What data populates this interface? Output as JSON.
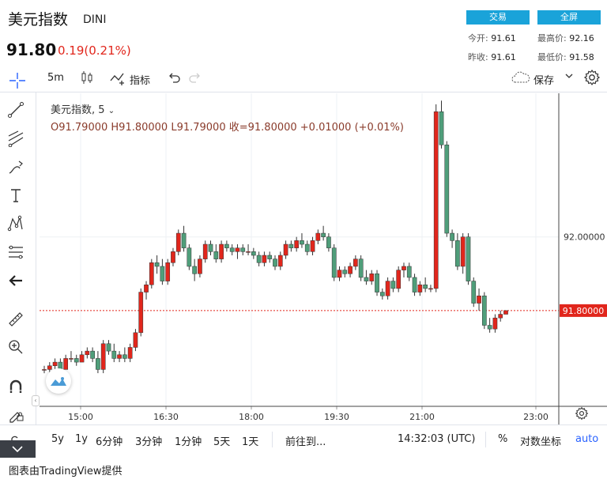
{
  "header": {
    "title": "美元指数",
    "ticker": "DINI",
    "price": "91.80",
    "change": "0.19(0.21%)",
    "trade_button": "交易",
    "fullscreen_button": "全屏",
    "stats": {
      "open_label": "今开:",
      "open_value": "91.61",
      "high_label": "最高价:",
      "high_value": "92.16",
      "prev_close_label": "昨收:",
      "prev_close_value": "91.61",
      "low_label": "最低价:",
      "low_value": "91.58"
    }
  },
  "toolbar": {
    "interval": "5m",
    "indicators_label": "指标",
    "save_label": "保存"
  },
  "legend": {
    "symbol": "美元指数, 5",
    "ohlc": "O91.79000   H91.80000   L91.79000   收=91.80000   +0.01000 (+0.01%)"
  },
  "bottom_bar": {
    "ranges": [
      "5y",
      "1y",
      "6分钟",
      "3分钟",
      "1分钟",
      "5天",
      "1天"
    ],
    "goto_label": "前往到...",
    "clock": "14:32:03 (UTC)",
    "percent_label": "%",
    "log_label": "对数坐标",
    "auto_label": "auto"
  },
  "credit": "图表由TradingView提供",
  "colors": {
    "up": "#e1261c",
    "down": "#4f9e7a",
    "accent": "#1aa3d9",
    "price_line": "#e1261c"
  },
  "chart_data": {
    "type": "candlestick",
    "x_ticks": [
      "15:00",
      "16:30",
      "18:00",
      "19:30",
      "21:00",
      "23:00"
    ],
    "y_tick_labels": [
      "92.00000"
    ],
    "last_price_label": "91.80000",
    "last_price": 91.8,
    "y_range": [
      91.54,
      92.39
    ],
    "candles": [
      [
        91.64,
        91.65,
        91.63,
        91.64
      ],
      [
        91.64,
        91.66,
        91.63,
        91.65
      ],
      [
        91.65,
        91.67,
        91.64,
        91.66
      ],
      [
        91.66,
        91.67,
        91.64,
        91.64
      ],
      [
        91.64,
        91.68,
        91.64,
        91.67
      ],
      [
        91.67,
        91.69,
        91.66,
        91.67
      ],
      [
        91.67,
        91.68,
        91.65,
        91.66
      ],
      [
        91.66,
        91.69,
        91.66,
        91.68
      ],
      [
        91.68,
        91.7,
        91.67,
        91.69
      ],
      [
        91.69,
        91.7,
        91.66,
        91.67
      ],
      [
        91.67,
        91.69,
        91.63,
        91.64
      ],
      [
        91.64,
        91.72,
        91.63,
        91.71
      ],
      [
        91.71,
        91.72,
        91.68,
        91.69
      ],
      [
        91.69,
        91.71,
        91.66,
        91.67
      ],
      [
        91.67,
        91.69,
        91.66,
        91.68
      ],
      [
        91.68,
        91.7,
        91.66,
        91.67
      ],
      [
        91.67,
        91.71,
        91.66,
        91.7
      ],
      [
        91.7,
        91.75,
        91.69,
        91.74
      ],
      [
        91.74,
        91.86,
        91.73,
        91.85
      ],
      [
        91.85,
        91.88,
        91.83,
        91.87
      ],
      [
        91.87,
        91.94,
        91.86,
        91.93
      ],
      [
        91.93,
        91.95,
        91.9,
        91.92
      ],
      [
        91.92,
        91.94,
        91.87,
        91.88
      ],
      [
        91.88,
        91.94,
        91.87,
        91.93
      ],
      [
        91.93,
        91.97,
        91.92,
        91.96
      ],
      [
        91.96,
        92.02,
        91.95,
        92.01
      ],
      [
        92.01,
        92.03,
        91.96,
        91.97
      ],
      [
        91.97,
        91.98,
        91.91,
        91.92
      ],
      [
        91.92,
        91.94,
        91.88,
        91.9
      ],
      [
        91.9,
        91.95,
        91.89,
        91.94
      ],
      [
        91.94,
        91.99,
        91.93,
        91.98
      ],
      [
        91.98,
        91.99,
        91.95,
        91.96
      ],
      [
        91.96,
        91.98,
        91.93,
        91.94
      ],
      [
        91.94,
        91.99,
        91.93,
        91.98
      ],
      [
        91.98,
        91.99,
        91.96,
        91.97
      ],
      [
        91.97,
        91.98,
        91.95,
        91.96
      ],
      [
        91.96,
        91.98,
        91.94,
        91.97
      ],
      [
        91.97,
        91.98,
        91.95,
        91.96
      ],
      [
        91.96,
        91.98,
        91.95,
        91.96
      ],
      [
        91.96,
        91.97,
        91.94,
        91.95
      ],
      [
        91.95,
        91.96,
        91.92,
        91.93
      ],
      [
        91.93,
        91.96,
        91.92,
        91.95
      ],
      [
        91.95,
        91.96,
        91.93,
        91.94
      ],
      [
        91.94,
        91.95,
        91.91,
        91.92
      ],
      [
        91.92,
        91.96,
        91.91,
        91.95
      ],
      [
        91.95,
        91.99,
        91.94,
        91.98
      ],
      [
        91.98,
        91.99,
        91.96,
        91.97
      ],
      [
        91.97,
        92.0,
        91.96,
        91.99
      ],
      [
        91.99,
        92.01,
        91.97,
        91.98
      ],
      [
        91.98,
        91.99,
        91.95,
        91.96
      ],
      [
        91.96,
        92.0,
        91.95,
        91.99
      ],
      [
        91.99,
        92.02,
        91.98,
        92.01
      ],
      [
        92.01,
        92.03,
        91.99,
        92.0
      ],
      [
        92.0,
        92.01,
        91.96,
        91.97
      ],
      [
        91.97,
        91.98,
        91.88,
        91.89
      ],
      [
        91.89,
        91.92,
        91.88,
        91.91
      ],
      [
        91.91,
        91.92,
        91.89,
        91.9
      ],
      [
        91.9,
        91.93,
        91.89,
        91.92
      ],
      [
        91.92,
        91.95,
        91.91,
        91.94
      ],
      [
        91.94,
        91.95,
        91.88,
        91.89
      ],
      [
        91.89,
        91.91,
        91.87,
        91.88
      ],
      [
        91.88,
        91.91,
        91.87,
        91.9
      ],
      [
        91.9,
        91.91,
        91.84,
        91.85
      ],
      [
        91.85,
        91.86,
        91.83,
        91.84
      ],
      [
        91.84,
        91.89,
        91.83,
        91.88
      ],
      [
        91.88,
        91.89,
        91.85,
        91.86
      ],
      [
        91.86,
        91.92,
        91.85,
        91.91
      ],
      [
        91.91,
        91.93,
        91.89,
        91.92
      ],
      [
        91.92,
        91.93,
        91.88,
        91.89
      ],
      [
        91.89,
        91.9,
        91.84,
        91.85
      ],
      [
        91.85,
        91.88,
        91.84,
        91.87
      ],
      [
        91.87,
        91.89,
        91.85,
        91.86
      ],
      [
        91.86,
        91.87,
        91.85,
        91.86
      ],
      [
        91.86,
        92.36,
        91.85,
        92.34
      ],
      [
        92.34,
        92.37,
        92.24,
        92.25
      ],
      [
        92.25,
        92.26,
        92.0,
        92.01
      ],
      [
        92.01,
        92.02,
        91.97,
        91.99
      ],
      [
        91.99,
        92.01,
        91.91,
        91.92
      ],
      [
        91.92,
        92.01,
        91.9,
        92.0
      ],
      [
        92.0,
        92.01,
        91.87,
        91.88
      ],
      [
        91.88,
        91.89,
        91.81,
        91.82
      ],
      [
        91.82,
        91.86,
        91.8,
        91.84
      ],
      [
        91.84,
        91.85,
        91.75,
        91.76
      ],
      [
        91.76,
        91.78,
        91.74,
        91.75
      ],
      [
        91.75,
        91.79,
        91.74,
        91.78
      ],
      [
        91.78,
        91.8,
        91.77,
        91.79
      ],
      [
        91.79,
        91.8,
        91.79,
        91.8
      ]
    ]
  }
}
